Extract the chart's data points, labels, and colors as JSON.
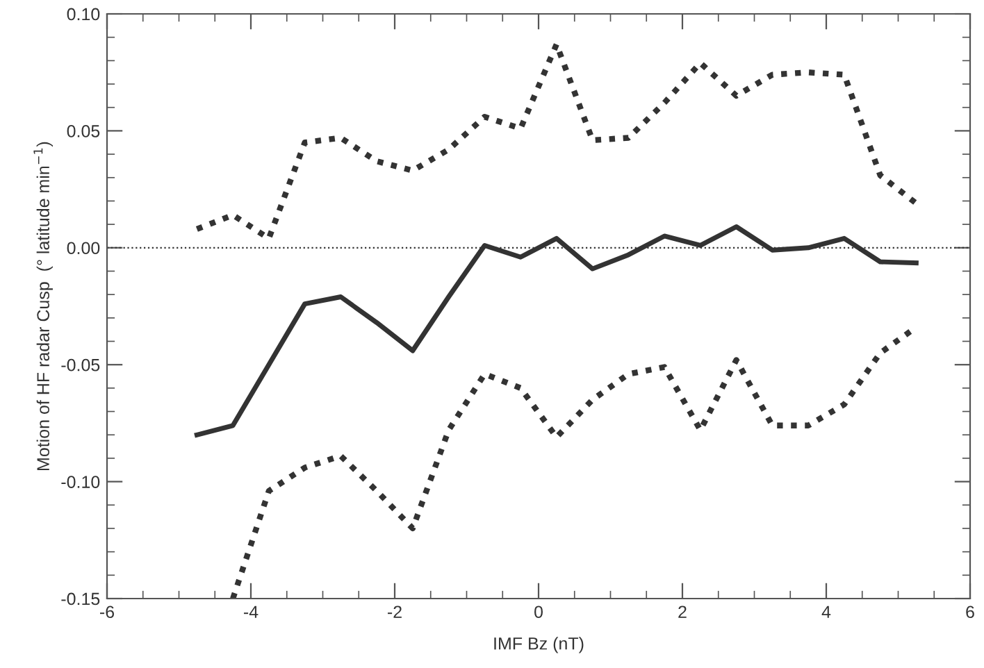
{
  "chart_data": {
    "type": "line",
    "xlabel": "IMF Bz (nT)",
    "ylabel": "Motion of HF radar Cusp  (° latitude min$^{−1}$)",
    "x": [
      -4.75,
      -4.25,
      -3.75,
      -3.25,
      -2.75,
      -2.25,
      -1.75,
      -1.25,
      -0.75,
      -0.25,
      0.25,
      0.75,
      1.25,
      1.75,
      2.25,
      2.75,
      3.25,
      3.75,
      4.25,
      4.75,
      5.25
    ],
    "series": [
      {
        "color": "#333333",
        "line_style": "solid",
        "values": [
          -0.08,
          -0.076,
          -0.05,
          -0.024,
          -0.021,
          -0.032,
          -0.044,
          -0.021,
          0.001,
          -0.004,
          0.004,
          -0.009,
          -0.003,
          0.005,
          0.001,
          0.009,
          -0.001,
          0.0,
          0.004,
          -0.006,
          -0.0065
        ]
      },
      {
        "color": "#333333",
        "line_style": "dotted",
        "values": [
          0.008,
          0.014,
          0.004,
          0.045,
          0.047,
          0.037,
          0.033,
          0.042,
          0.056,
          0.051,
          0.087,
          0.046,
          0.047,
          0.062,
          0.079,
          0.065,
          0.074,
          0.075,
          0.074,
          0.031,
          0.019
        ]
      },
      {
        "color": "#333333",
        "line_style": "dotted",
        "values": [
          null,
          -0.15,
          -0.104,
          -0.094,
          -0.089,
          -0.104,
          -0.12,
          -0.078,
          -0.054,
          -0.06,
          -0.081,
          -0.065,
          -0.054,
          -0.051,
          -0.078,
          -0.048,
          -0.076,
          -0.076,
          -0.067,
          -0.045,
          -0.034
        ]
      }
    ],
    "xlim": [
      -6,
      6
    ],
    "xticks": [
      -6,
      -4,
      -2,
      0,
      2,
      4,
      6
    ],
    "ylim": [
      -0.15,
      0.1
    ],
    "yticks": [
      {
        "value": -0.15,
        "label": "-0.15"
      },
      {
        "value": -0.1,
        "label": "-0.10"
      },
      {
        "value": -0.05,
        "label": "-0.05"
      },
      {
        "value": 0,
        "label": "0.00"
      },
      {
        "value": 0.05,
        "label": "0.05"
      },
      {
        "value": 0.1,
        "label": "0.10"
      }
    ],
    "ref_lines": [
      {
        "axis": "y",
        "value": 0,
        "label": null,
        "color": "#333333",
        "line_style": "dotted"
      }
    ],
    "grid": false,
    "legend": false
  }
}
